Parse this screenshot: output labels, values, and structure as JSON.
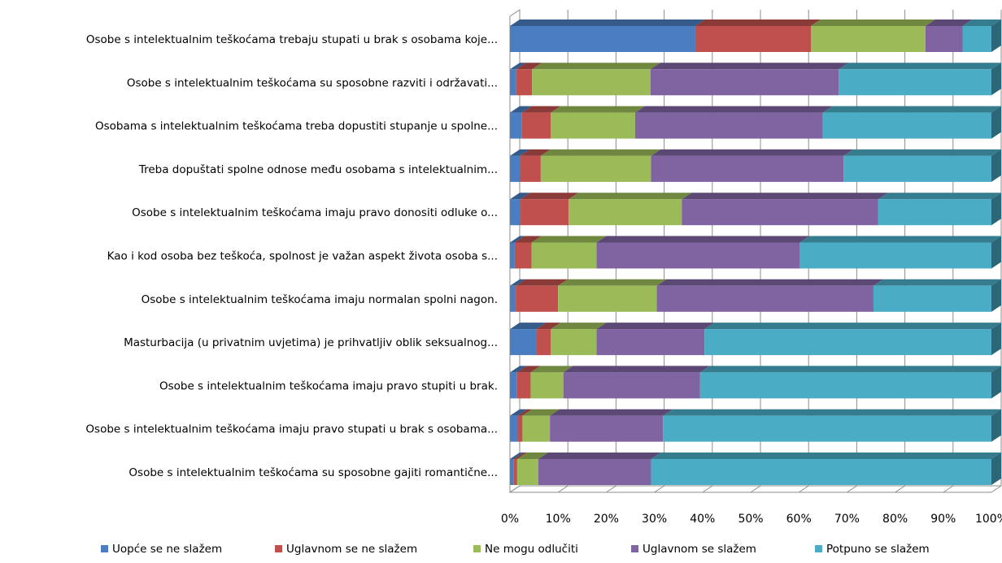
{
  "chart_data": {
    "type": "bar",
    "orientation": "horizontal",
    "stacked": "percent",
    "three_d": true,
    "grid": true,
    "legend_position": "bottom",
    "title": "",
    "xlabel": "",
    "ylabel": "",
    "xlim": [
      0,
      100
    ],
    "x_ticks": [
      "0%",
      "10%",
      "20%",
      "30%",
      "40%",
      "50%",
      "60%",
      "70%",
      "80%",
      "90%",
      "100%"
    ],
    "categories": [
      "Osobe s intelektualnim teškoćama trebaju stupati u brak s osobama koje...",
      "Osobe s intelektualnim teškoćama su sposobne razviti i održavati...",
      "Osobama s intelektualnim teškoćama treba dopustiti stupanje u spolne...",
      "Treba dopuštati spolne odnose među osobama s intelektualnim...",
      "Osobe s intelektualnim teškoćama imaju pravo donositi odluke o...",
      "Kao i kod osoba bez teškoća, spolnost je važan aspekt života osoba s...",
      "Osobe s intelektualnim teškoćama imaju normalan spolni nagon.",
      "Masturbacija (u privatnim uvjetima) je prihvatljiv oblik seksualnog...",
      "Osobe s intelektualnim teškoćama imaju pravo stupiti u brak.",
      "Osobe s intelektualnim teškoćama imaju pravo stupati u brak s osobama...",
      "Osobe s intelektualnim teškoćama su sposobne gajiti romantične..."
    ],
    "series": [
      {
        "name": "Uopće se ne slažem",
        "color": "#4A7EC0",
        "values": [
          38.5,
          1.3,
          2.5,
          2.1,
          2.2,
          1.0,
          1.2,
          5.5,
          1.5,
          1.6,
          0.8
        ]
      },
      {
        "name": "Uglavnom se ne slažem",
        "color": "#C0504D",
        "values": [
          24.0,
          3.3,
          6.0,
          4.3,
          10.0,
          3.5,
          8.8,
          3.0,
          2.8,
          1.0,
          0.7
        ]
      },
      {
        "name": "Ne mogu odlučiti",
        "color": "#9BBB59",
        "values": [
          23.8,
          24.6,
          17.5,
          22.9,
          23.5,
          13.5,
          20.5,
          9.5,
          6.8,
          5.7,
          4.4
        ]
      },
      {
        "name": "Uglavnom se slažem",
        "color": "#8064A2",
        "values": [
          7.7,
          39.1,
          39.0,
          40.0,
          40.8,
          42.2,
          45.0,
          22.4,
          28.4,
          23.5,
          23.4
        ]
      },
      {
        "name": "Potpuno se slažem",
        "color": "#4BACC6",
        "values": [
          6.0,
          31.7,
          35.0,
          30.7,
          23.5,
          39.8,
          24.5,
          59.6,
          60.5,
          68.2,
          70.7
        ]
      }
    ]
  }
}
